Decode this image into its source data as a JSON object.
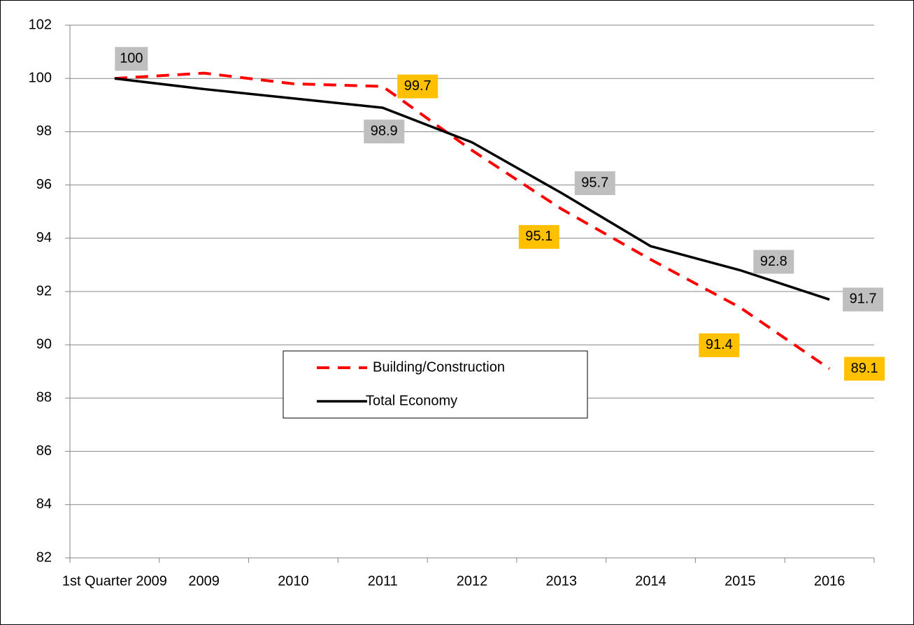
{
  "chart_data": {
    "type": "line",
    "categories": [
      "1st Quarter 2009",
      "2009",
      "2010",
      "2011",
      "2012",
      "2013",
      "2014",
      "2015",
      "2016"
    ],
    "series": [
      {
        "name": "Building/Construction",
        "color": "#ff0000",
        "dashed": true,
        "label_color": "#ffc000",
        "values": [
          100,
          100.2,
          99.8,
          99.7,
          97.3,
          95.1,
          93.2,
          91.4,
          89.1
        ],
        "value_labels": [
          null,
          null,
          null,
          "99.7",
          null,
          "95.1",
          null,
          "91.4",
          "89.1"
        ]
      },
      {
        "name": "Total Economy",
        "color": "#000000",
        "dashed": false,
        "label_color": "#bfbfbf",
        "values": [
          100,
          99.6,
          99.25,
          98.9,
          97.6,
          95.7,
          93.7,
          92.8,
          91.7
        ],
        "value_labels": [
          "100",
          null,
          null,
          "98.9",
          null,
          "95.7",
          null,
          "92.8",
          "91.7"
        ]
      }
    ],
    "ylim": [
      82,
      102
    ],
    "yticks": [
      82,
      84,
      86,
      88,
      90,
      92,
      94,
      96,
      98,
      100,
      102
    ],
    "grid": true
  }
}
